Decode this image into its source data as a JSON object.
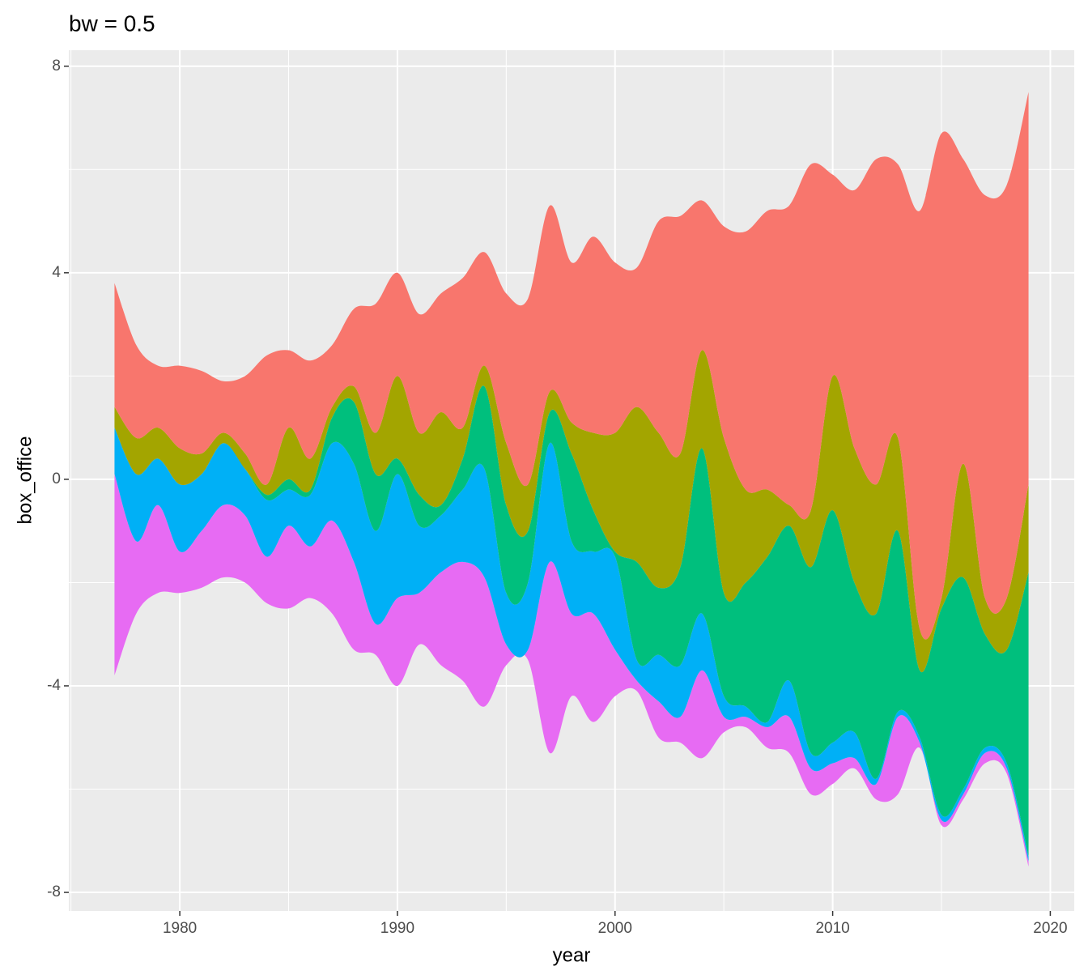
{
  "chart_data": {
    "type": "streamgraph",
    "title": "bw = 0.5",
    "xlabel": "year",
    "ylabel": "box_office",
    "x": [
      1977,
      1978,
      1979,
      1980,
      1981,
      1982,
      1983,
      1984,
      1985,
      1986,
      1987,
      1988,
      1989,
      1990,
      1991,
      1992,
      1993,
      1994,
      1995,
      1996,
      1997,
      1998,
      1999,
      2000,
      2001,
      2002,
      2003,
      2004,
      2005,
      2006,
      2007,
      2008,
      2009,
      2010,
      2011,
      2012,
      2013,
      2014,
      2015,
      2016,
      2017,
      2018,
      2019
    ],
    "series": [
      {
        "color": "#E76BF3",
        "values": [
          3.9,
          1.4,
          1.7,
          0.8,
          1.1,
          1.4,
          1.3,
          0.9,
          1.6,
          1.0,
          1.8,
          1.7,
          0.6,
          1.7,
          1.0,
          1.8,
          2.3,
          2.5,
          0.4,
          0.2,
          3.7,
          1.6,
          2.1,
          0.9,
          0.2,
          0.7,
          0.5,
          1.7,
          0.3,
          0.2,
          0.4,
          0.7,
          0.5,
          0.4,
          0.2,
          0.3,
          1.5,
          0.1,
          0.1,
          0.1,
          0.2,
          0.1,
          0.1
        ]
      },
      {
        "color": "#00B0F6",
        "values": [
          0.9,
          1.3,
          0.9,
          1.3,
          1.1,
          1.2,
          0.9,
          1.1,
          0.7,
          1.0,
          1.5,
          1.9,
          1.8,
          2.4,
          1.3,
          1.1,
          1.4,
          2.1,
          1.0,
          1.3,
          2.3,
          1.4,
          1.2,
          1.8,
          0.4,
          0.9,
          1.0,
          1.1,
          0.4,
          0.2,
          0.1,
          0.7,
          0.3,
          0.4,
          0.5,
          0.1,
          0.1,
          0.1,
          0.1,
          0.1,
          0.1,
          0.1,
          0.1
        ]
      },
      {
        "color": "#00BF7D",
        "values": [
          0,
          0,
          0,
          0,
          0,
          0,
          0,
          0.1,
          0.2,
          0.1,
          0.5,
          1.2,
          1.1,
          0.3,
          0.6,
          0.2,
          0.6,
          1.6,
          1.7,
          1.0,
          0.6,
          1.7,
          0.8,
          0.1,
          1.9,
          1.3,
          1.9,
          3.2,
          2.0,
          2.4,
          3.2,
          3.0,
          3.6,
          4.5,
          2.9,
          3.2,
          3.5,
          1.3,
          4.0,
          4.1,
          2.2,
          2.2,
          5.5
        ]
      },
      {
        "color": "#A3A500",
        "values": [
          0.4,
          0.7,
          0.6,
          0.7,
          0.4,
          0.2,
          0.3,
          0.2,
          1.0,
          0.6,
          0.2,
          0.3,
          0.8,
          1.6,
          1.2,
          1.8,
          0.6,
          0.4,
          1.2,
          0.9,
          0.4,
          0.6,
          1.5,
          2.3,
          3.0,
          3.0,
          2.2,
          1.9,
          3.0,
          1.8,
          1.3,
          0.4,
          1.1,
          2.6,
          2.6,
          2.5,
          1.8,
          0.8,
          0.2,
          2.2,
          0.7,
          1.0,
          1.7
        ]
      },
      {
        "color": "#F8766D",
        "values": [
          2.4,
          1.8,
          1.2,
          1.6,
          1.6,
          1.0,
          1.5,
          2.5,
          1.5,
          1.9,
          1.2,
          1.5,
          2.5,
          2.0,
          2.3,
          2.3,
          2.9,
          2.2,
          2.9,
          3.6,
          3.6,
          3.1,
          3.8,
          3.3,
          2.7,
          4.1,
          4.6,
          2.9,
          4.1,
          5.0,
          5.4,
          5.8,
          6.7,
          3.9,
          5.0,
          6.3,
          5.3,
          8.1,
          9.0,
          5.9,
          7.8,
          8.0,
          7.6
        ]
      }
    ],
    "xlim": [
      1974.9,
      2021.1
    ],
    "ylim": [
      -8.36,
      8.31
    ],
    "xticks": [
      1980,
      1990,
      2000,
      2010,
      2020
    ],
    "yticks": [
      -8,
      -4,
      0,
      4,
      8
    ],
    "xminor": [
      1975,
      1985,
      1995,
      2005,
      2015
    ],
    "yminor": [
      -6,
      -2,
      2,
      6
    ],
    "grid": true
  }
}
